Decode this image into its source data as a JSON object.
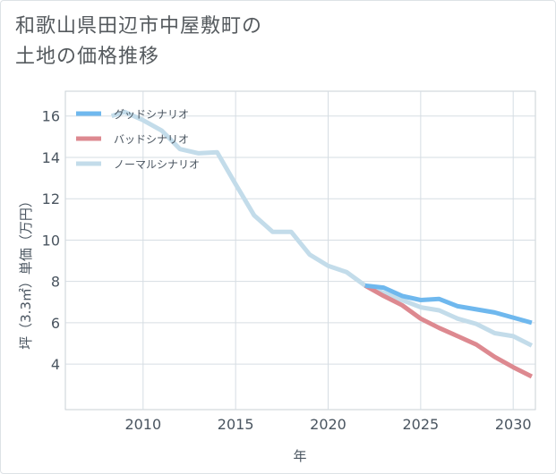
{
  "title_lines": [
    "和歌山県田辺市中屋敷町の",
    "土地の価格推移"
  ],
  "chart_data": {
    "type": "line",
    "xlabel": "年",
    "ylabel": "坪（3.3㎡）単価（万円）",
    "xlim": [
      2005.8,
      2031.2
    ],
    "ylim": [
      1.8,
      17.2
    ],
    "xticks": [
      2010,
      2015,
      2020,
      2025,
      2030
    ],
    "yticks": [
      4,
      6,
      8,
      10,
      12,
      14,
      16
    ],
    "grid": true,
    "legend_position": "top-left",
    "series": [
      {
        "name": "グッドシナリオ",
        "color": "#6fb8ee",
        "x": [
          2022,
          2023,
          2024,
          2025,
          2026,
          2027,
          2028,
          2029,
          2030,
          2031
        ],
        "y": [
          7.8,
          7.7,
          7.3,
          7.1,
          7.15,
          6.8,
          6.65,
          6.5,
          6.25,
          6.0
        ]
      },
      {
        "name": "バッドシナリオ",
        "color": "#dd8990",
        "x": [
          2022,
          2023,
          2024,
          2025,
          2026,
          2027,
          2028,
          2029,
          2030,
          2031
        ],
        "y": [
          7.8,
          7.3,
          6.85,
          6.2,
          5.75,
          5.35,
          4.95,
          4.35,
          3.85,
          3.4
        ]
      },
      {
        "name": "ノーマルシナリオ",
        "color": "#c3dcea",
        "x": [
          2008.3,
          2009,
          2010,
          2011,
          2012,
          2013,
          2014,
          2015,
          2016,
          2017,
          2018,
          2019,
          2020,
          2021,
          2022,
          2023,
          2024,
          2025,
          2026,
          2027,
          2028,
          2029,
          2030,
          2031
        ],
        "y": [
          16.0,
          16.2,
          15.8,
          15.3,
          14.4,
          14.2,
          14.25,
          12.7,
          11.2,
          10.4,
          10.4,
          9.3,
          8.75,
          8.45,
          7.8,
          7.45,
          7.1,
          6.75,
          6.6,
          6.2,
          5.95,
          5.5,
          5.35,
          4.9
        ]
      }
    ]
  }
}
